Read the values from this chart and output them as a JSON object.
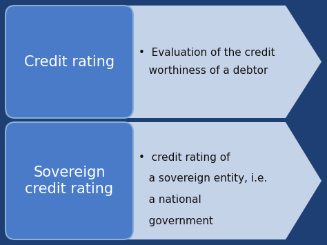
{
  "background_color": "#1e3f73",
  "box1_color": "#4a7bc8",
  "box2_color": "#4a7bc8",
  "arrow1_color": "#c5d3e8",
  "arrow2_color": "#c5d3e8",
  "box1_label": "Credit rating",
  "box2_label": "Sovereign\ncredit rating",
  "bullet1_line1": "•  Evaluation of the credit",
  "bullet1_line2": "   worthiness of a debtor",
  "bullet2_line1": "•  credit rating of",
  "bullet2_line2": "   a sovereign entity, i.e.",
  "bullet2_line3": "   a national",
  "bullet2_line4": "   government",
  "label_color": "#ffffff",
  "bullet_color": "#111111",
  "label_fontsize": 15,
  "bullet_fontsize": 11,
  "fig_width": 4.74,
  "fig_height": 3.55,
  "dpi": 100
}
